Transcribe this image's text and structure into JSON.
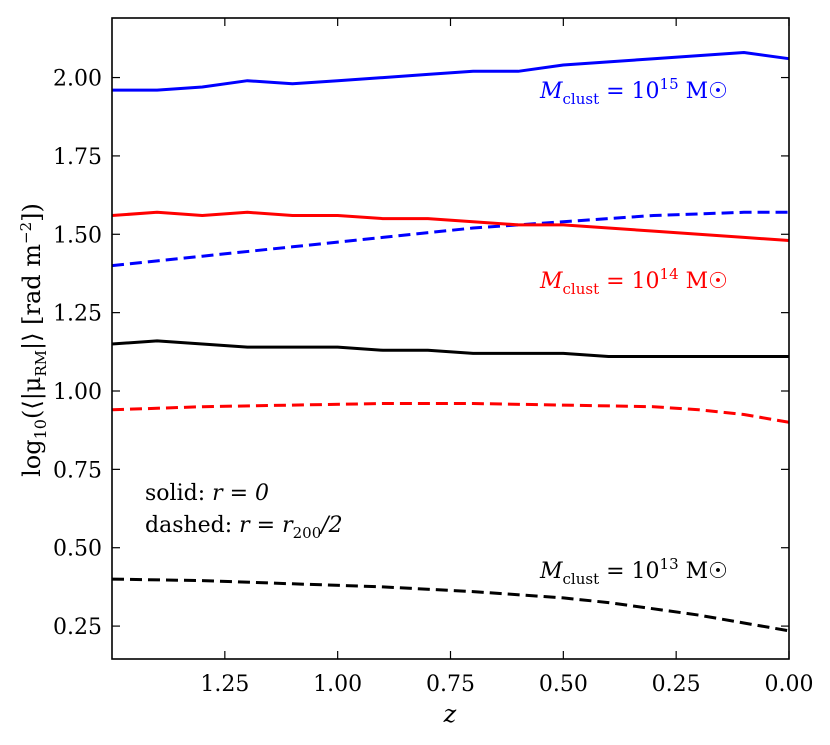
{
  "chart_data": {
    "type": "line",
    "title": "",
    "xlabel": "z",
    "ylabel": "log10(⟨|μRM|⟩ [rad m⁻²])",
    "ylabel_parts": {
      "pre": "log",
      "sub10": "10",
      "mid": "(⟨|μ",
      "subRM": "RM",
      "post": "|⟩ [rad m",
      "sup": "−2",
      "end": "])"
    },
    "xlim": [
      1.5,
      0.0
    ],
    "ylim": [
      0.145,
      2.19
    ],
    "x_inverted": true,
    "xticks": [
      1.25,
      1.0,
      0.75,
      0.5,
      0.25,
      0.0
    ],
    "xtick_labels": [
      "1.25",
      "1.00",
      "0.75",
      "0.50",
      "0.25",
      "0.00"
    ],
    "yticks": [
      0.25,
      0.5,
      0.75,
      1.0,
      1.25,
      1.5,
      1.75,
      2.0
    ],
    "ytick_labels": [
      "0.25",
      "0.50",
      "0.75",
      "1.00",
      "1.25",
      "1.50",
      "1.75",
      "2.00"
    ],
    "series": [
      {
        "name": "M_clust = 10^15 M☉, r = 0",
        "color": "#0000ff",
        "style": "solid",
        "x": [
          1.5,
          1.4,
          1.3,
          1.2,
          1.1,
          1.0,
          0.9,
          0.8,
          0.7,
          0.6,
          0.5,
          0.4,
          0.3,
          0.2,
          0.1,
          0.0
        ],
        "y": [
          1.96,
          1.96,
          1.97,
          1.99,
          1.98,
          1.99,
          2.0,
          2.01,
          2.02,
          2.02,
          2.04,
          2.05,
          2.06,
          2.07,
          2.08,
          2.06
        ]
      },
      {
        "name": "M_clust = 10^15 M☉, r = r200/2",
        "color": "#0000ff",
        "style": "dashed",
        "x": [
          1.5,
          1.3,
          1.1,
          0.9,
          0.7,
          0.5,
          0.3,
          0.1,
          0.0
        ],
        "y": [
          1.4,
          1.43,
          1.46,
          1.49,
          1.52,
          1.54,
          1.56,
          1.57,
          1.57
        ]
      },
      {
        "name": "M_clust = 10^14 M☉, r = 0",
        "color": "#ff0000",
        "style": "solid",
        "x": [
          1.5,
          1.4,
          1.3,
          1.2,
          1.1,
          1.0,
          0.9,
          0.8,
          0.7,
          0.6,
          0.5,
          0.4,
          0.3,
          0.2,
          0.1,
          0.0
        ],
        "y": [
          1.56,
          1.57,
          1.56,
          1.57,
          1.56,
          1.56,
          1.55,
          1.55,
          1.54,
          1.53,
          1.53,
          1.52,
          1.51,
          1.5,
          1.49,
          1.48
        ]
      },
      {
        "name": "M_clust = 10^14 M☉, r = r200/2",
        "color": "#ff0000",
        "style": "dashed",
        "x": [
          1.5,
          1.3,
          1.1,
          0.9,
          0.7,
          0.5,
          0.3,
          0.2,
          0.1,
          0.0
        ],
        "y": [
          0.94,
          0.95,
          0.955,
          0.96,
          0.96,
          0.955,
          0.95,
          0.94,
          0.925,
          0.9
        ]
      },
      {
        "name": "M_clust = 10^13 M☉, r = 0",
        "color": "#000000",
        "style": "solid",
        "x": [
          1.5,
          1.4,
          1.3,
          1.2,
          1.1,
          1.0,
          0.9,
          0.8,
          0.7,
          0.6,
          0.5,
          0.4,
          0.3,
          0.2,
          0.1,
          0.0
        ],
        "y": [
          1.15,
          1.16,
          1.15,
          1.14,
          1.14,
          1.14,
          1.13,
          1.13,
          1.12,
          1.12,
          1.12,
          1.11,
          1.11,
          1.11,
          1.11,
          1.11
        ]
      },
      {
        "name": "M_clust = 10^13 M☉, r = r200/2",
        "color": "#000000",
        "style": "dashed",
        "x": [
          1.5,
          1.3,
          1.1,
          0.9,
          0.7,
          0.5,
          0.4,
          0.3,
          0.2,
          0.1,
          0.0
        ],
        "y": [
          0.4,
          0.395,
          0.385,
          0.375,
          0.36,
          0.34,
          0.325,
          0.305,
          0.285,
          0.26,
          0.235
        ]
      }
    ],
    "annotations": [
      {
        "id": "m15",
        "prefix": "M",
        "sub": "clust",
        "mid": " = 10",
        "sup": "15",
        "unit": " M☉",
        "color": "#0000ff"
      },
      {
        "id": "m14",
        "prefix": "M",
        "sub": "clust",
        "mid": " = 10",
        "sup": "14",
        "unit": " M☉",
        "color": "#ff0000"
      },
      {
        "id": "m13",
        "prefix": "M",
        "sub": "clust",
        "mid": " = 10",
        "sup": "13",
        "unit": " M☉",
        "color": "#000000"
      }
    ],
    "legend_text": {
      "solid": {
        "label": "solid: ",
        "eq": "r = 0"
      },
      "dashed": {
        "label": "dashed: ",
        "eq_pre": "r = r",
        "eq_sub": "200",
        "eq_post": "/2"
      }
    }
  }
}
